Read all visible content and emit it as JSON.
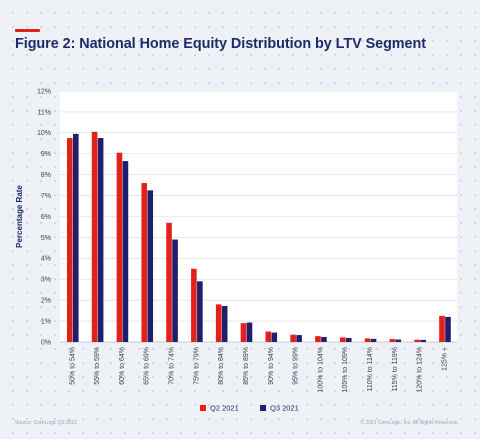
{
  "header": {
    "title": "Figure 2: National Home Equity Distribution by LTV Segment"
  },
  "footer": {
    "source": "Source: CoreLogic Q3 2021",
    "copyright": "© 2021 CoreLogic, Inc. All Rights Reserved."
  },
  "colors": {
    "q2": "#e3211b",
    "q3": "#1f1f6e",
    "accent": "#e3211b",
    "title": "#1f2a6b",
    "background": "#eef1f6",
    "plot_background": "#ffffff",
    "grid": "#d6dae3"
  },
  "chart_data": {
    "type": "bar",
    "title": "Figure 2: National Home Equity Distribution by LTV Segment",
    "xlabel": "",
    "ylabel": "Percentage Rate",
    "ylim": [
      0,
      12
    ],
    "yticks": [
      "0%",
      "1%",
      "2%",
      "3%",
      "4%",
      "5%",
      "6%",
      "7%",
      "8%",
      "9%",
      "10%",
      "11%",
      "12%"
    ],
    "grid": "horizontal",
    "legend_position": "bottom",
    "categories": [
      "50% to 54%",
      "55% to 59%",
      "60% to 64%",
      "65% to 69%",
      "70% to 74%",
      "75% to 79%",
      "80% to 84%",
      "85% to 89%",
      "90% to 94%",
      "95% to 99%",
      "100% to 104%",
      "105% to 109%",
      "110% to 114%",
      "115% to 119%",
      "120% to 124%",
      "125% +"
    ],
    "series": [
      {
        "name": "Q2 2021",
        "color": "#e3211b",
        "values": [
          9.75,
          10.05,
          9.05,
          7.6,
          5.7,
          3.5,
          1.8,
          0.9,
          0.5,
          0.35,
          0.28,
          0.22,
          0.17,
          0.14,
          0.11,
          1.25
        ]
      },
      {
        "name": "Q3 2021",
        "color": "#1f1f6e",
        "values": [
          9.95,
          9.75,
          8.65,
          7.25,
          4.9,
          2.9,
          1.72,
          0.93,
          0.45,
          0.33,
          0.24,
          0.19,
          0.15,
          0.12,
          0.1,
          1.2
        ]
      }
    ]
  }
}
